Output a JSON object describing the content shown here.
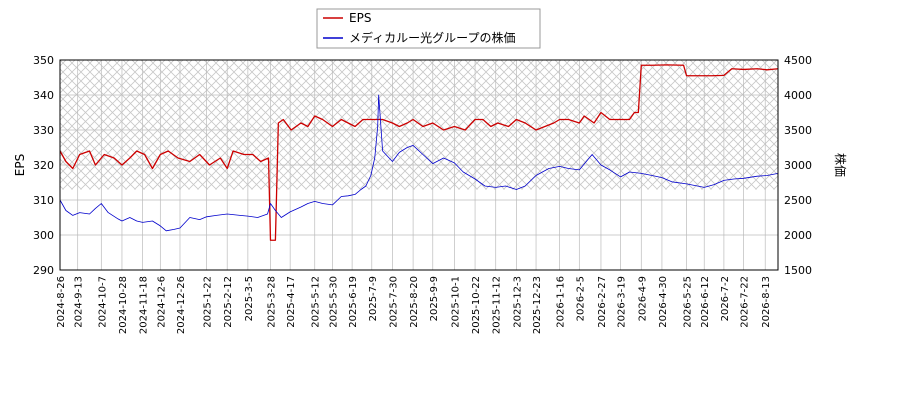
{
  "chart_data": {
    "type": "line",
    "legend": {
      "placement": "top-center",
      "entries": [
        "EPS",
        "メディカルー光グループの株価"
      ]
    },
    "left_axis": {
      "label": "EPS",
      "range": [
        290,
        350
      ],
      "ticks": [
        "290",
        "300",
        "310",
        "320",
        "330",
        "340",
        "350"
      ]
    },
    "right_axis": {
      "label": "株価",
      "range": [
        1500,
        4500
      ],
      "ticks": [
        "1500",
        "2000",
        "2500",
        "3000",
        "3500",
        "4000",
        "4500"
      ]
    },
    "x_axis": {
      "range": [
        "2024-08-26",
        "2026-08-26"
      ],
      "ticks": [
        "2024-8-26",
        "2024-9-13",
        "2024-10-7",
        "2024-10-28",
        "2024-11-18",
        "2024-12-6",
        "2024-12-26",
        "2025-1-22",
        "2025-2-12",
        "2025-3-5",
        "2025-3-28",
        "2025-4-17",
        "2025-5-12",
        "2025-5-30",
        "2025-6-19",
        "2025-7-9",
        "2025-7-30",
        "2025-8-20",
        "2025-9-9",
        "2025-10-1",
        "2025-10-22",
        "2025-11-12",
        "2025-12-3",
        "2025-12-23",
        "2026-1-16",
        "2026-2-5",
        "2026-2-27",
        "2026-3-19",
        "2026-4-9",
        "2026-4-30",
        "2026-5-25",
        "2026-6-12",
        "2026-7-2",
        "2026-7-22",
        "2026-8-13"
      ]
    },
    "grid": true,
    "forecast_region": {
      "from": "2024-08-26",
      "to": "2026-08-26",
      "eps_range": [
        313,
        350
      ]
    },
    "colors": {
      "eps": "#cc0000",
      "price": "#0000cc",
      "grid": "#bbbbbb",
      "hatch": "#c8c8c8"
    },
    "series": [
      {
        "name": "EPS",
        "axis": "left",
        "points": [
          [
            "2024-08-26",
            324
          ],
          [
            "2024-09-01",
            321
          ],
          [
            "2024-09-08",
            319
          ],
          [
            "2024-09-15",
            323
          ],
          [
            "2024-09-25",
            324
          ],
          [
            "2024-10-01",
            320
          ],
          [
            "2024-10-10",
            323
          ],
          [
            "2024-10-20",
            322
          ],
          [
            "2024-10-28",
            320
          ],
          [
            "2024-11-05",
            322
          ],
          [
            "2024-11-12",
            324
          ],
          [
            "2024-11-20",
            323
          ],
          [
            "2024-11-28",
            319
          ],
          [
            "2024-12-06",
            323
          ],
          [
            "2024-12-14",
            324
          ],
          [
            "2024-12-24",
            322
          ],
          [
            "2025-01-05",
            321
          ],
          [
            "2025-01-15",
            323
          ],
          [
            "2025-01-25",
            320
          ],
          [
            "2025-02-05",
            322
          ],
          [
            "2025-02-12",
            319
          ],
          [
            "2025-02-18",
            324
          ],
          [
            "2025-03-01",
            323
          ],
          [
            "2025-03-10",
            323
          ],
          [
            "2025-03-18",
            321
          ],
          [
            "2025-03-26",
            322
          ],
          [
            "2025-03-28",
            298.5
          ],
          [
            "2025-04-02",
            298.5
          ],
          [
            "2025-04-05",
            332
          ],
          [
            "2025-04-10",
            333
          ],
          [
            "2025-04-18",
            330
          ],
          [
            "2025-04-28",
            332
          ],
          [
            "2025-05-05",
            331
          ],
          [
            "2025-05-12",
            334
          ],
          [
            "2025-05-20",
            333
          ],
          [
            "2025-05-30",
            331
          ],
          [
            "2025-06-08",
            333
          ],
          [
            "2025-06-15",
            332
          ],
          [
            "2025-06-22",
            331
          ],
          [
            "2025-06-30",
            333
          ],
          [
            "2025-07-09",
            333
          ],
          [
            "2025-07-20",
            333
          ],
          [
            "2025-07-30",
            332
          ],
          [
            "2025-08-06",
            331
          ],
          [
            "2025-08-14",
            332
          ],
          [
            "2025-08-20",
            333
          ],
          [
            "2025-08-30",
            331
          ],
          [
            "2025-09-09",
            332
          ],
          [
            "2025-09-20",
            330
          ],
          [
            "2025-10-01",
            331
          ],
          [
            "2025-10-12",
            330
          ],
          [
            "2025-10-22",
            333
          ],
          [
            "2025-10-30",
            333
          ],
          [
            "2025-11-07",
            331
          ],
          [
            "2025-11-14",
            332
          ],
          [
            "2025-11-25",
            331
          ],
          [
            "2025-12-03",
            333
          ],
          [
            "2025-12-12",
            332
          ],
          [
            "2025-12-23",
            330
          ],
          [
            "2026-01-01",
            331
          ],
          [
            "2026-01-10",
            332
          ],
          [
            "2026-01-16",
            333
          ],
          [
            "2026-01-25",
            333
          ],
          [
            "2026-02-05",
            332
          ],
          [
            "2026-02-10",
            334
          ],
          [
            "2026-02-20",
            332
          ],
          [
            "2026-02-27",
            335
          ],
          [
            "2026-03-08",
            333
          ],
          [
            "2026-03-19",
            333
          ],
          [
            "2026-03-28",
            333
          ],
          [
            "2026-04-02",
            335
          ],
          [
            "2026-04-06",
            335
          ],
          [
            "2026-04-09",
            348.5
          ],
          [
            "2026-04-20",
            348.5
          ],
          [
            "2026-05-05",
            348.6
          ],
          [
            "2026-05-22",
            348.5
          ],
          [
            "2026-05-25",
            345.5
          ],
          [
            "2026-06-05",
            345.5
          ],
          [
            "2026-06-20",
            345.5
          ],
          [
            "2026-07-02",
            345.6
          ],
          [
            "2026-07-10",
            347.5
          ],
          [
            "2026-07-22",
            347.3
          ],
          [
            "2026-08-05",
            347.5
          ],
          [
            "2026-08-15",
            347.2
          ],
          [
            "2026-08-26",
            347.5
          ]
        ]
      },
      {
        "name": "メディカルー光グループの株価",
        "axis": "right",
        "points": [
          [
            "2024-08-26",
            2500
          ],
          [
            "2024-09-01",
            2350
          ],
          [
            "2024-09-08",
            2280
          ],
          [
            "2024-09-15",
            2320
          ],
          [
            "2024-09-25",
            2300
          ],
          [
            "2024-10-01",
            2380
          ],
          [
            "2024-10-07",
            2450
          ],
          [
            "2024-10-14",
            2320
          ],
          [
            "2024-10-24",
            2230
          ],
          [
            "2024-10-28",
            2200
          ],
          [
            "2024-11-05",
            2250
          ],
          [
            "2024-11-12",
            2200
          ],
          [
            "2024-11-18",
            2180
          ],
          [
            "2024-11-28",
            2200
          ],
          [
            "2024-12-06",
            2130
          ],
          [
            "2024-12-12",
            2060
          ],
          [
            "2024-12-20",
            2080
          ],
          [
            "2024-12-26",
            2100
          ],
          [
            "2025-01-05",
            2250
          ],
          [
            "2025-01-15",
            2220
          ],
          [
            "2025-01-22",
            2260
          ],
          [
            "2025-02-01",
            2280
          ],
          [
            "2025-02-12",
            2300
          ],
          [
            "2025-02-25",
            2280
          ],
          [
            "2025-03-05",
            2270
          ],
          [
            "2025-03-15",
            2250
          ],
          [
            "2025-03-25",
            2300
          ],
          [
            "2025-03-28",
            2450
          ],
          [
            "2025-04-02",
            2350
          ],
          [
            "2025-04-08",
            2250
          ],
          [
            "2025-04-17",
            2330
          ],
          [
            "2025-04-28",
            2400
          ],
          [
            "2025-05-05",
            2450
          ],
          [
            "2025-05-12",
            2480
          ],
          [
            "2025-05-20",
            2450
          ],
          [
            "2025-05-30",
            2430
          ],
          [
            "2025-06-08",
            2550
          ],
          [
            "2025-06-15",
            2560
          ],
          [
            "2025-06-22",
            2580
          ],
          [
            "2025-06-28",
            2650
          ],
          [
            "2025-07-03",
            2700
          ],
          [
            "2025-07-08",
            2850
          ],
          [
            "2025-07-12",
            3100
          ],
          [
            "2025-07-15",
            3550
          ],
          [
            "2025-07-16",
            4000
          ],
          [
            "2025-07-20",
            3200
          ],
          [
            "2025-07-30",
            3050
          ],
          [
            "2025-08-06",
            3180
          ],
          [
            "2025-08-14",
            3250
          ],
          [
            "2025-08-20",
            3280
          ],
          [
            "2025-08-30",
            3150
          ],
          [
            "2025-09-09",
            3020
          ],
          [
            "2025-09-20",
            3100
          ],
          [
            "2025-10-01",
            3030
          ],
          [
            "2025-10-10",
            2900
          ],
          [
            "2025-10-22",
            2800
          ],
          [
            "2025-11-01",
            2700
          ],
          [
            "2025-11-12",
            2680
          ],
          [
            "2025-11-22",
            2700
          ],
          [
            "2025-12-03",
            2650
          ],
          [
            "2025-12-12",
            2700
          ],
          [
            "2025-12-23",
            2850
          ],
          [
            "2026-01-05",
            2950
          ],
          [
            "2026-01-16",
            2980
          ],
          [
            "2026-01-25",
            2950
          ],
          [
            "2026-02-05",
            2930
          ],
          [
            "2026-02-18",
            3150
          ],
          [
            "2026-02-27",
            3000
          ],
          [
            "2026-03-08",
            2930
          ],
          [
            "2026-03-19",
            2830
          ],
          [
            "2026-03-28",
            2900
          ],
          [
            "2026-04-09",
            2880
          ],
          [
            "2026-04-20",
            2850
          ],
          [
            "2026-04-30",
            2820
          ],
          [
            "2026-05-10",
            2760
          ],
          [
            "2026-05-25",
            2730
          ],
          [
            "2026-06-05",
            2700
          ],
          [
            "2026-06-12",
            2680
          ],
          [
            "2026-06-22",
            2720
          ],
          [
            "2026-07-02",
            2780
          ],
          [
            "2026-07-12",
            2800
          ],
          [
            "2026-07-22",
            2810
          ],
          [
            "2026-08-05",
            2840
          ],
          [
            "2026-08-15",
            2850
          ],
          [
            "2026-08-26",
            2880
          ]
        ]
      }
    ]
  }
}
